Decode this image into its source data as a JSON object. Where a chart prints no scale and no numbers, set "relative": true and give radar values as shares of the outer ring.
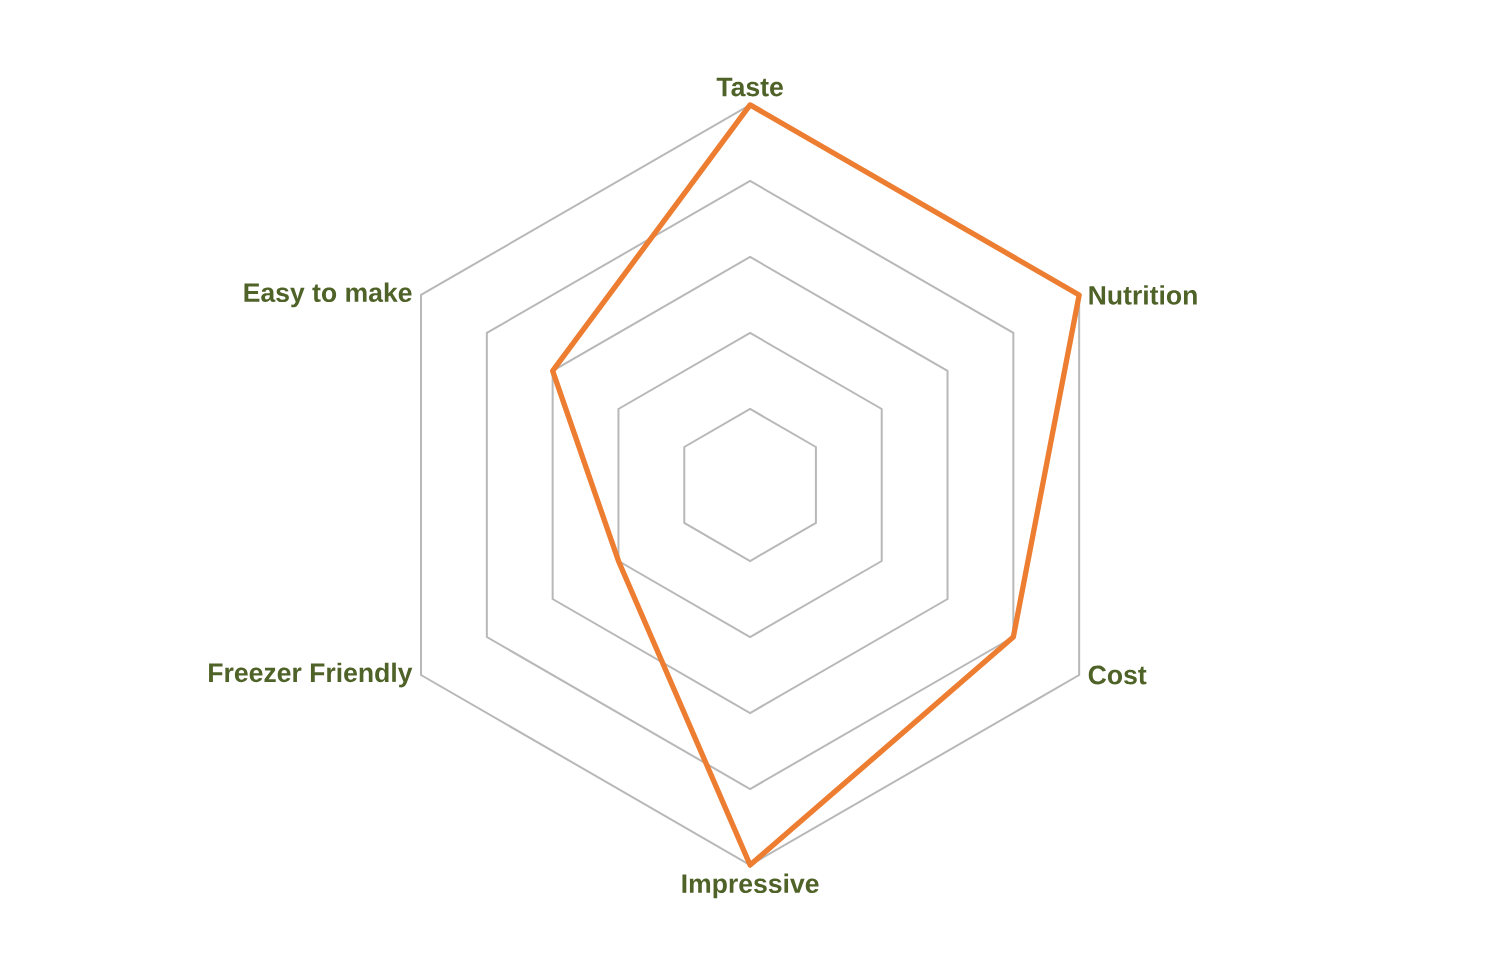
{
  "chart_data": {
    "type": "radar",
    "relative": true,
    "grid": true,
    "categories": [
      "Taste",
      "Nutrition",
      "Cost",
      "Impressive",
      "Freezer Friendly",
      "Easy to make"
    ],
    "series": [
      {
        "color": "#ed7d31",
        "values": [
          1.0,
          1.0,
          0.8,
          1.0,
          0.4,
          0.6
        ]
      }
    ]
  }
}
